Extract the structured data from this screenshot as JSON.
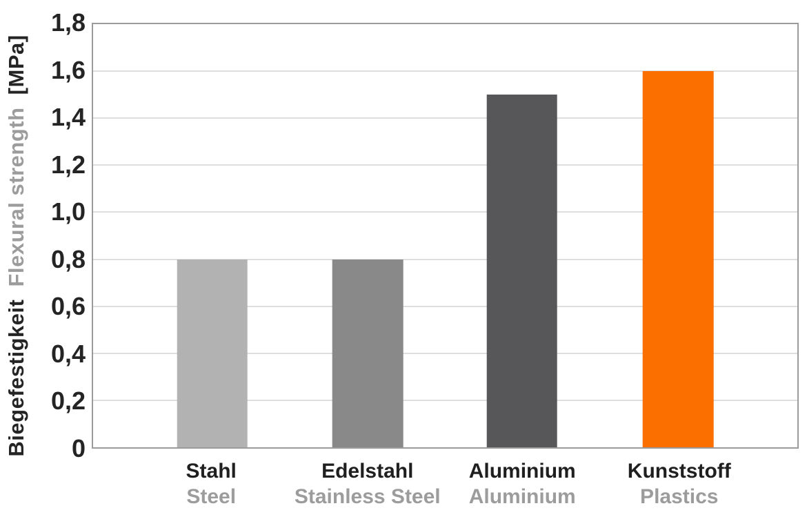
{
  "chart_data": {
    "type": "bar",
    "title": "",
    "ylabel_de": "Biegefestigkeit",
    "ylabel_en": "Flexural strength",
    "ylabel_unit": "[MPa]",
    "ylim": [
      0,
      1.8
    ],
    "grid": true,
    "decimal_separator": ",",
    "yticks": [
      {
        "label": "1,8",
        "value": 1.8
      },
      {
        "label": "1,6",
        "value": 1.6
      },
      {
        "label": "1,4",
        "value": 1.4
      },
      {
        "label": "1,2",
        "value": 1.2
      },
      {
        "label": "1,0",
        "value": 1.0
      },
      {
        "label": "0,8",
        "value": 0.8
      },
      {
        "label": "0,6",
        "value": 0.6
      },
      {
        "label": "0,4",
        "value": 0.4
      },
      {
        "label": "0,2",
        "value": 0.2
      },
      {
        "label": "0",
        "value": 0
      }
    ],
    "categories": [
      {
        "name_de": "Stahl",
        "name_en": "Steel",
        "value": 0.8,
        "color": "#b2b2b2",
        "center_pct": 16.9
      },
      {
        "name_de": "Edelstahl",
        "name_en": "Stainless Steel",
        "value": 0.8,
        "color": "#898989",
        "center_pct": 39.0
      },
      {
        "name_de": "Aluminium",
        "name_en": "Aluminium",
        "value": 1.5,
        "color": "#575759",
        "center_pct": 60.9
      },
      {
        "name_de": "Kunststoff",
        "name_en": "Plastics",
        "value": 1.6,
        "color": "#fb6e00",
        "center_pct": 83.1
      }
    ],
    "bar_width_pct": 10.05
  },
  "colors": {
    "text_dark": "#242424",
    "text_gray": "#9c9c9c",
    "grid": "#dedede",
    "axis_border": "#9b9b9b",
    "background": "#ffffff"
  }
}
